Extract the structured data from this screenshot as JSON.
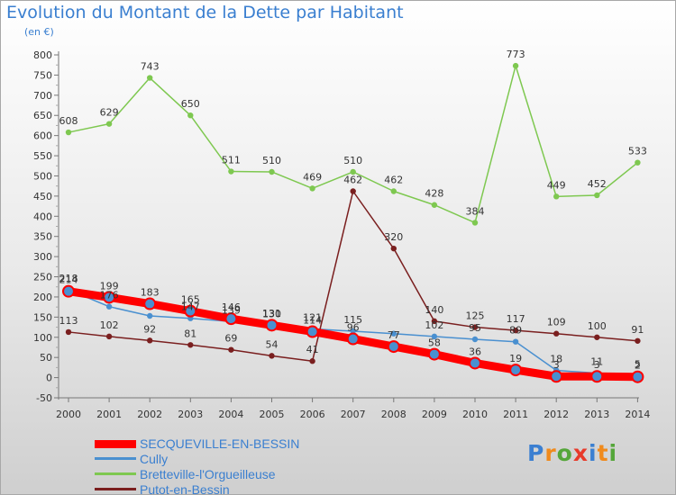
{
  "title": "Evolution du Montant de la Dette par Habitant",
  "unit_label": "(en €)",
  "brand": {
    "letters": [
      "P",
      "r",
      "o",
      "x",
      "i",
      "t",
      "i"
    ],
    "colors": [
      "#3b7fd1",
      "#f08a1c",
      "#55a63a",
      "#e83a2a",
      "#3b7fd1",
      "#f08a1c",
      "#55a63a"
    ]
  },
  "chart_data": {
    "type": "line",
    "title": "Evolution du Montant de la Dette par Habitant",
    "ylabel": "(en €)",
    "xlabel": "",
    "x": [
      "2000",
      "2001",
      "2002",
      "2003",
      "2004",
      "2005",
      "2006",
      "2007",
      "2008",
      "2009",
      "2010",
      "2011",
      "2012",
      "2013",
      "2014"
    ],
    "ylim": [
      -50,
      800
    ],
    "yticks": [
      -50,
      0,
      50,
      100,
      150,
      200,
      250,
      300,
      350,
      400,
      450,
      500,
      550,
      600,
      650,
      700,
      750,
      800
    ],
    "grid": false,
    "legend_position": "bottom-left",
    "series": [
      {
        "name": "SECQUEVILLE-EN-BESSIN",
        "color": "#ff0000",
        "values": [
          214,
          199,
          183,
          165,
          146,
          130,
          114,
          96,
          77,
          58,
          36,
          19,
          3,
          3,
          2
        ],
        "labels": [
          "214",
          "199",
          "183",
          "165",
          "146",
          "130",
          "114",
          "96",
          "77",
          "58",
          "36",
          "19",
          "3",
          "3",
          "2"
        ]
      },
      {
        "name": "Cully",
        "color": "#4a90d0",
        "values": [
          218,
          176,
          153,
          147,
          139,
          131,
          121,
          115,
          109,
          102,
          95,
          89,
          18,
          11,
          5
        ],
        "labels": [
          "218",
          "176",
          "",
          "147",
          "139",
          "131",
          "121",
          "115",
          "",
          "102",
          "95",
          "89",
          "18",
          "11",
          "5"
        ]
      },
      {
        "name": "Bretteville-l'Orgueilleuse",
        "color": "#7ec850",
        "values": [
          608,
          629,
          743,
          650,
          511,
          510,
          469,
          510,
          462,
          428,
          384,
          773,
          449,
          452,
          533
        ],
        "labels": [
          "608",
          "629",
          "743",
          "650",
          "511",
          "510",
          "469",
          "510",
          "462",
          "428",
          "384",
          "773",
          "449",
          "452",
          "533"
        ]
      },
      {
        "name": "Putot-en-Bessin",
        "color": "#7a1f1f",
        "values": [
          113,
          102,
          92,
          81,
          69,
          54,
          41,
          462,
          320,
          140,
          125,
          117,
          109,
          100,
          91
        ],
        "labels": [
          "113",
          "102",
          "92",
          "81",
          "69",
          "54",
          "41",
          "462",
          "320",
          "140",
          "125",
          "117",
          "109",
          "100",
          "91"
        ]
      }
    ]
  }
}
